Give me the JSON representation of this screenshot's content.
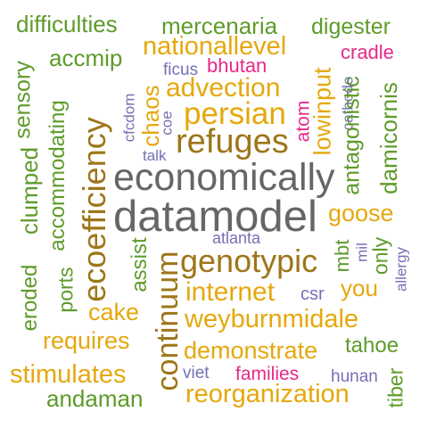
{
  "palette": {
    "green": "#5e9b2a",
    "orange": "#e5a80c",
    "brown": "#9e7619",
    "gray": "#666666",
    "purple": "#7570b3",
    "magenta": "#e7298a"
  },
  "words": [
    {
      "text": "difficulties",
      "color": "#5e9b2a"
    },
    {
      "text": "mercenaria",
      "color": "#5e9b2a"
    },
    {
      "text": "digester",
      "color": "#5e9b2a"
    },
    {
      "text": "accmip",
      "color": "#5e9b2a"
    },
    {
      "text": "nationallevel",
      "color": "#e5a80c"
    },
    {
      "text": "cradle",
      "color": "#e7298a"
    },
    {
      "text": "ficus",
      "color": "#7570b3"
    },
    {
      "text": "bhutan",
      "color": "#e7298a"
    },
    {
      "text": "advection",
      "color": "#e5a80c"
    },
    {
      "text": "persian",
      "color": "#e5a80c"
    },
    {
      "text": "refuges",
      "color": "#9e7619"
    },
    {
      "text": "talk",
      "color": "#7570b3"
    },
    {
      "text": "economically",
      "color": "#666666"
    },
    {
      "text": "datamodel",
      "color": "#666666"
    },
    {
      "text": "goose",
      "color": "#e5a80c"
    },
    {
      "text": "atlanta",
      "color": "#7570b3"
    },
    {
      "text": "genotypic",
      "color": "#9e7619"
    },
    {
      "text": "internet",
      "color": "#e5a80c"
    },
    {
      "text": "csr",
      "color": "#7570b3"
    },
    {
      "text": "you",
      "color": "#e5a80c"
    },
    {
      "text": "cake",
      "color": "#e5a80c"
    },
    {
      "text": "weyburnmidale",
      "color": "#e5a80c"
    },
    {
      "text": "requires",
      "color": "#e5a80c"
    },
    {
      "text": "demonstrate",
      "color": "#e5a80c"
    },
    {
      "text": "tahoe",
      "color": "#5e9b2a"
    },
    {
      "text": "stimulates",
      "color": "#e5a80c"
    },
    {
      "text": "viet",
      "color": "#7570b3"
    },
    {
      "text": "families",
      "color": "#e7298a"
    },
    {
      "text": "hunan",
      "color": "#7570b3"
    },
    {
      "text": "andaman",
      "color": "#5e9b2a"
    },
    {
      "text": "reorganization",
      "color": "#e5a80c"
    },
    {
      "text": "sensory",
      "color": "#5e9b2a"
    },
    {
      "text": "clumped",
      "color": "#5e9b2a"
    },
    {
      "text": "accommodating",
      "color": "#5e9b2a"
    },
    {
      "text": "eroded",
      "color": "#5e9b2a"
    },
    {
      "text": "ports",
      "color": "#5e9b2a"
    },
    {
      "text": "ecoefficiency",
      "color": "#9e7619"
    },
    {
      "text": "cfcdom",
      "color": "#7570b3"
    },
    {
      "text": "chaos",
      "color": "#e5a80c"
    },
    {
      "text": "coe",
      "color": "#7570b3"
    },
    {
      "text": "assist",
      "color": "#5e9b2a"
    },
    {
      "text": "continuum",
      "color": "#9e7619"
    },
    {
      "text": "atom",
      "color": "#e7298a"
    },
    {
      "text": "lowinput",
      "color": "#e5a80c"
    },
    {
      "text": "cathode",
      "color": "#7570b3"
    },
    {
      "text": "antagonistic",
      "color": "#5e9b2a"
    },
    {
      "text": "damicornis",
      "color": "#5e9b2a"
    },
    {
      "text": "mbt",
      "color": "#5e9b2a"
    },
    {
      "text": "mil",
      "color": "#7570b3"
    },
    {
      "text": "only",
      "color": "#5e9b2a"
    },
    {
      "text": "allergy",
      "color": "#7570b3"
    },
    {
      "text": "tiber",
      "color": "#5e9b2a"
    }
  ]
}
